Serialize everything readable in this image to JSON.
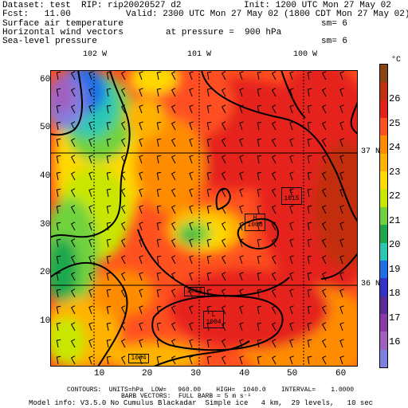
{
  "header": {
    "dataset": "Dataset: test  RIP: rip20020527 d2",
    "init": "Init: 1200 UTC Mon 27 May 02",
    "fcst": "Fcst:   11.00",
    "valid": "Valid: 2300 UTC Mon 27 May 02 (1800 CDT Mon 27 May 02)",
    "field1": "Surface air temperature",
    "field2": "Horizontal wind vectors",
    "field3": "Sea-level pressure",
    "sm1": "sm= 6",
    "pressure": "at pressure =  900 hPa",
    "sm2": "sm= 6"
  },
  "map": {
    "lon_labels": [
      "102 W",
      "101 W",
      "100 W"
    ],
    "lat_labels": [
      "37 N",
      "36 N"
    ],
    "x_ticks": [
      "10",
      "20",
      "30",
      "40",
      "50",
      "60"
    ],
    "y_ticks": [
      "10",
      "20",
      "30",
      "40",
      "50",
      "60"
    ],
    "pressure_labels": [
      {
        "sym": "L",
        "val": "1015"
      },
      {
        "sym": "H",
        "val": "1008"
      },
      {
        "sym": "",
        "val": "1004"
      },
      {
        "sym": "L",
        "val": "1004"
      },
      {
        "sym": "",
        "val": "1004"
      }
    ]
  },
  "colorbar": {
    "unit": "°C",
    "labels": [
      "26",
      "25",
      "24",
      "23",
      "22",
      "21",
      "20",
      "19",
      "18",
      "17",
      "16"
    ],
    "colors": [
      "#8b4513",
      "#c22f10",
      "#e5221a",
      "#ff5020",
      "#ff8c00",
      "#ffb300",
      "#ffd900",
      "#c8e600",
      "#6fd23c",
      "#1ea84e",
      "#2ac8b4",
      "#1e6ee6",
      "#3232c8",
      "#5a2c9a",
      "#8a3aa8",
      "#a060c0",
      "#8080e0"
    ]
  },
  "footer": {
    "line1": "CONTOURS:  UNITS=hPa  LOW=   960.00    HIGH=  1040.0    INTERVAL=    1.0000",
    "line2": "BARB VECTORS:  FULL BARB = 5 m s⁻¹",
    "line3": "Model info: V3.5.0 No Cumulus Blackadar  Simple ice   4 km,  29 levels,   10 sec"
  }
}
